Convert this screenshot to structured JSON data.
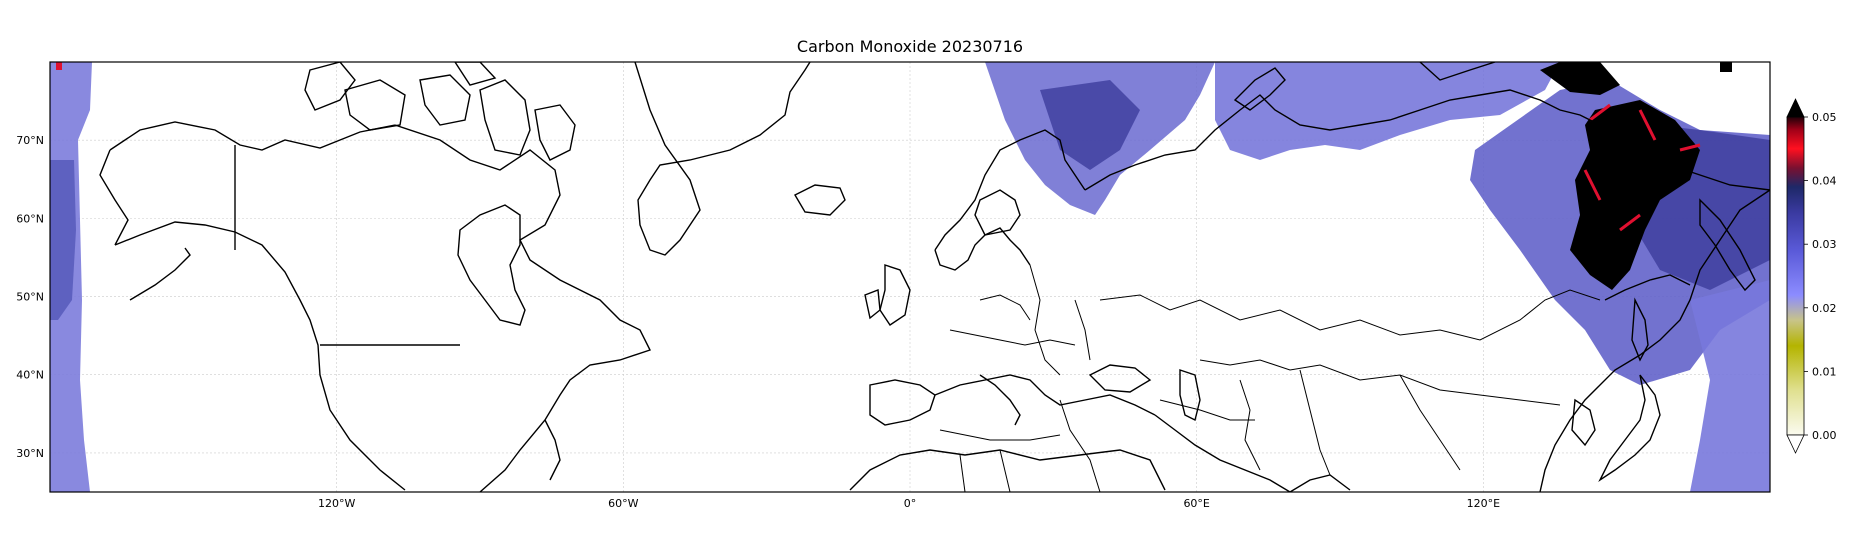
{
  "map": {
    "title": "Carbon Monoxide 20230716",
    "projection": "plate-carree",
    "extent": {
      "lon": [
        -180,
        180
      ],
      "lat": [
        25,
        80
      ]
    },
    "gridlines": true,
    "lat_ticks": [
      {
        "value": 70,
        "label": "70°N"
      },
      {
        "value": 60,
        "label": "60°N"
      },
      {
        "value": 50,
        "label": "50°N"
      },
      {
        "value": 40,
        "label": "40°N"
      },
      {
        "value": 30,
        "label": "30°N"
      }
    ],
    "lon_ticks": [
      {
        "value": -120,
        "label": "120°W"
      },
      {
        "value": -60,
        "label": "60°W"
      },
      {
        "value": 0,
        "label": "0°"
      },
      {
        "value": 60,
        "label": "60°E"
      },
      {
        "value": 120,
        "label": "120°E"
      }
    ]
  },
  "colorbar": {
    "range": [
      0,
      0.05
    ],
    "extend": "both",
    "ticks": [
      "0.00",
      "0.01",
      "0.02",
      "0.03",
      "0.04",
      "0.05"
    ],
    "colors": [
      "#f8f8e8",
      "#d6d660",
      "#b4b400",
      "#c4c070",
      "#8c8cff",
      "#5a5ad0",
      "#3a3a90",
      "#202050",
      "#ff1020",
      "#600010",
      "#000000"
    ],
    "over_color": "#000000",
    "under_color": "#ffffff"
  },
  "data_colors": {
    "low": "#8080e0",
    "mid": "#5a5ac8",
    "high": "#303090",
    "extreme": "#000000",
    "spike": "#e01030"
  }
}
